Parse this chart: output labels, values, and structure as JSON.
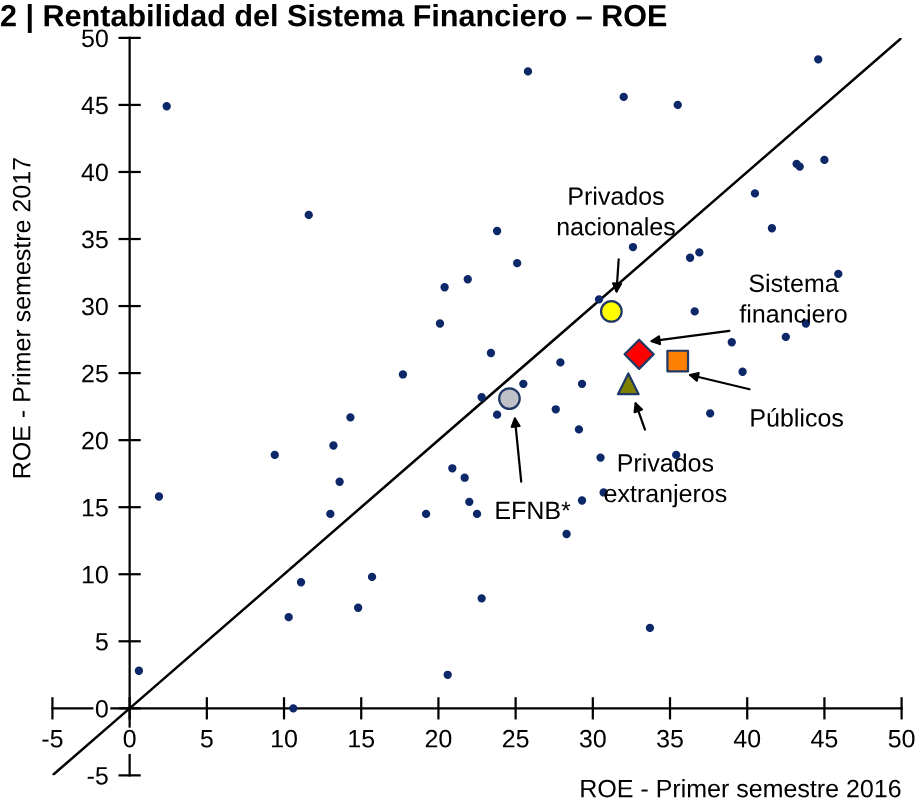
{
  "chart_data": {
    "type": "scatter",
    "title": "2 | Rentabilidad del Sistema Financiero – ROE",
    "xlabel": "ROE - Primer semestre 2016",
    "ylabel": "ROE - Primer semestre 2017",
    "xlim": [
      -5,
      50
    ],
    "ylim": [
      -5,
      50
    ],
    "xticks": [
      -5,
      0,
      5,
      10,
      15,
      20,
      25,
      30,
      35,
      40,
      45,
      50
    ],
    "yticks": [
      -5,
      0,
      5,
      10,
      15,
      20,
      25,
      30,
      35,
      40,
      45,
      50
    ],
    "grid": false,
    "legend": false,
    "series": [
      {
        "type": "line",
        "color": "#000000",
        "marker": "none",
        "x": [
          -5,
          0,
          50
        ],
        "values": [
          -5,
          0,
          50
        ]
      },
      {
        "color": "#0d2868",
        "marker": "circle",
        "x": [
          2.4,
          11.6,
          23.8,
          25.8,
          32.0,
          35.5,
          44.6,
          43.2,
          43.4,
          45.0,
          40.5,
          41.6,
          32.6,
          36.3,
          36.9,
          1.9,
          9.4,
          13.2,
          13.6,
          13.0,
          14.3,
          17.7,
          20.1,
          20.4,
          21.9,
          23.4,
          22.8,
          23.8,
          20.9,
          21.7,
          22.0,
          22.5,
          19.2,
          25.1,
          45.9,
          30.4,
          36.6,
          43.8,
          39.0,
          42.5,
          39.7,
          27.9,
          25.5,
          29.3,
          27.6,
          29.1,
          37.6,
          30.5,
          35.4,
          29.3,
          30.7,
          28.3,
          0.6,
          10.3,
          10.6,
          11.1,
          14.8,
          15.7,
          20.6,
          22.8,
          33.7
        ],
        "values": [
          44.9,
          36.8,
          35.6,
          47.5,
          45.6,
          45.0,
          48.4,
          40.6,
          40.4,
          40.9,
          38.4,
          35.8,
          34.4,
          33.6,
          34.0,
          15.8,
          18.9,
          19.6,
          16.9,
          14.5,
          21.7,
          24.9,
          28.7,
          31.4,
          32.0,
          26.5,
          23.2,
          21.9,
          17.9,
          17.2,
          15.4,
          14.5,
          14.5,
          33.2,
          32.4,
          30.5,
          29.6,
          28.7,
          27.3,
          27.7,
          25.1,
          25.8,
          24.2,
          24.2,
          22.3,
          20.8,
          22.0,
          18.7,
          18.9,
          15.5,
          16.1,
          13.0,
          2.8,
          6.8,
          0.0,
          9.4,
          7.5,
          9.8,
          2.5,
          8.2,
          6.0
        ]
      },
      {
        "name": "Privados nacionales",
        "color": "#ffff00",
        "marker": "circle",
        "x": [
          31.2
        ],
        "values": [
          29.6
        ]
      },
      {
        "name": "Sistema financiero",
        "color": "#ff0000",
        "marker": "diamond",
        "x": [
          33.0
        ],
        "values": [
          26.4
        ]
      },
      {
        "name": "Públicos",
        "color": "#ff8000",
        "marker": "square",
        "x": [
          35.5
        ],
        "values": [
          25.9
        ]
      },
      {
        "name": "Privados extranjeros",
        "color": "#808000",
        "marker": "triangle",
        "x": [
          32.3
        ],
        "values": [
          24.2
        ]
      },
      {
        "name": "EFNB*",
        "color": "#c0c0c8",
        "marker": "circle",
        "x": [
          24.6
        ],
        "values": [
          23.1
        ]
      }
    ]
  }
}
